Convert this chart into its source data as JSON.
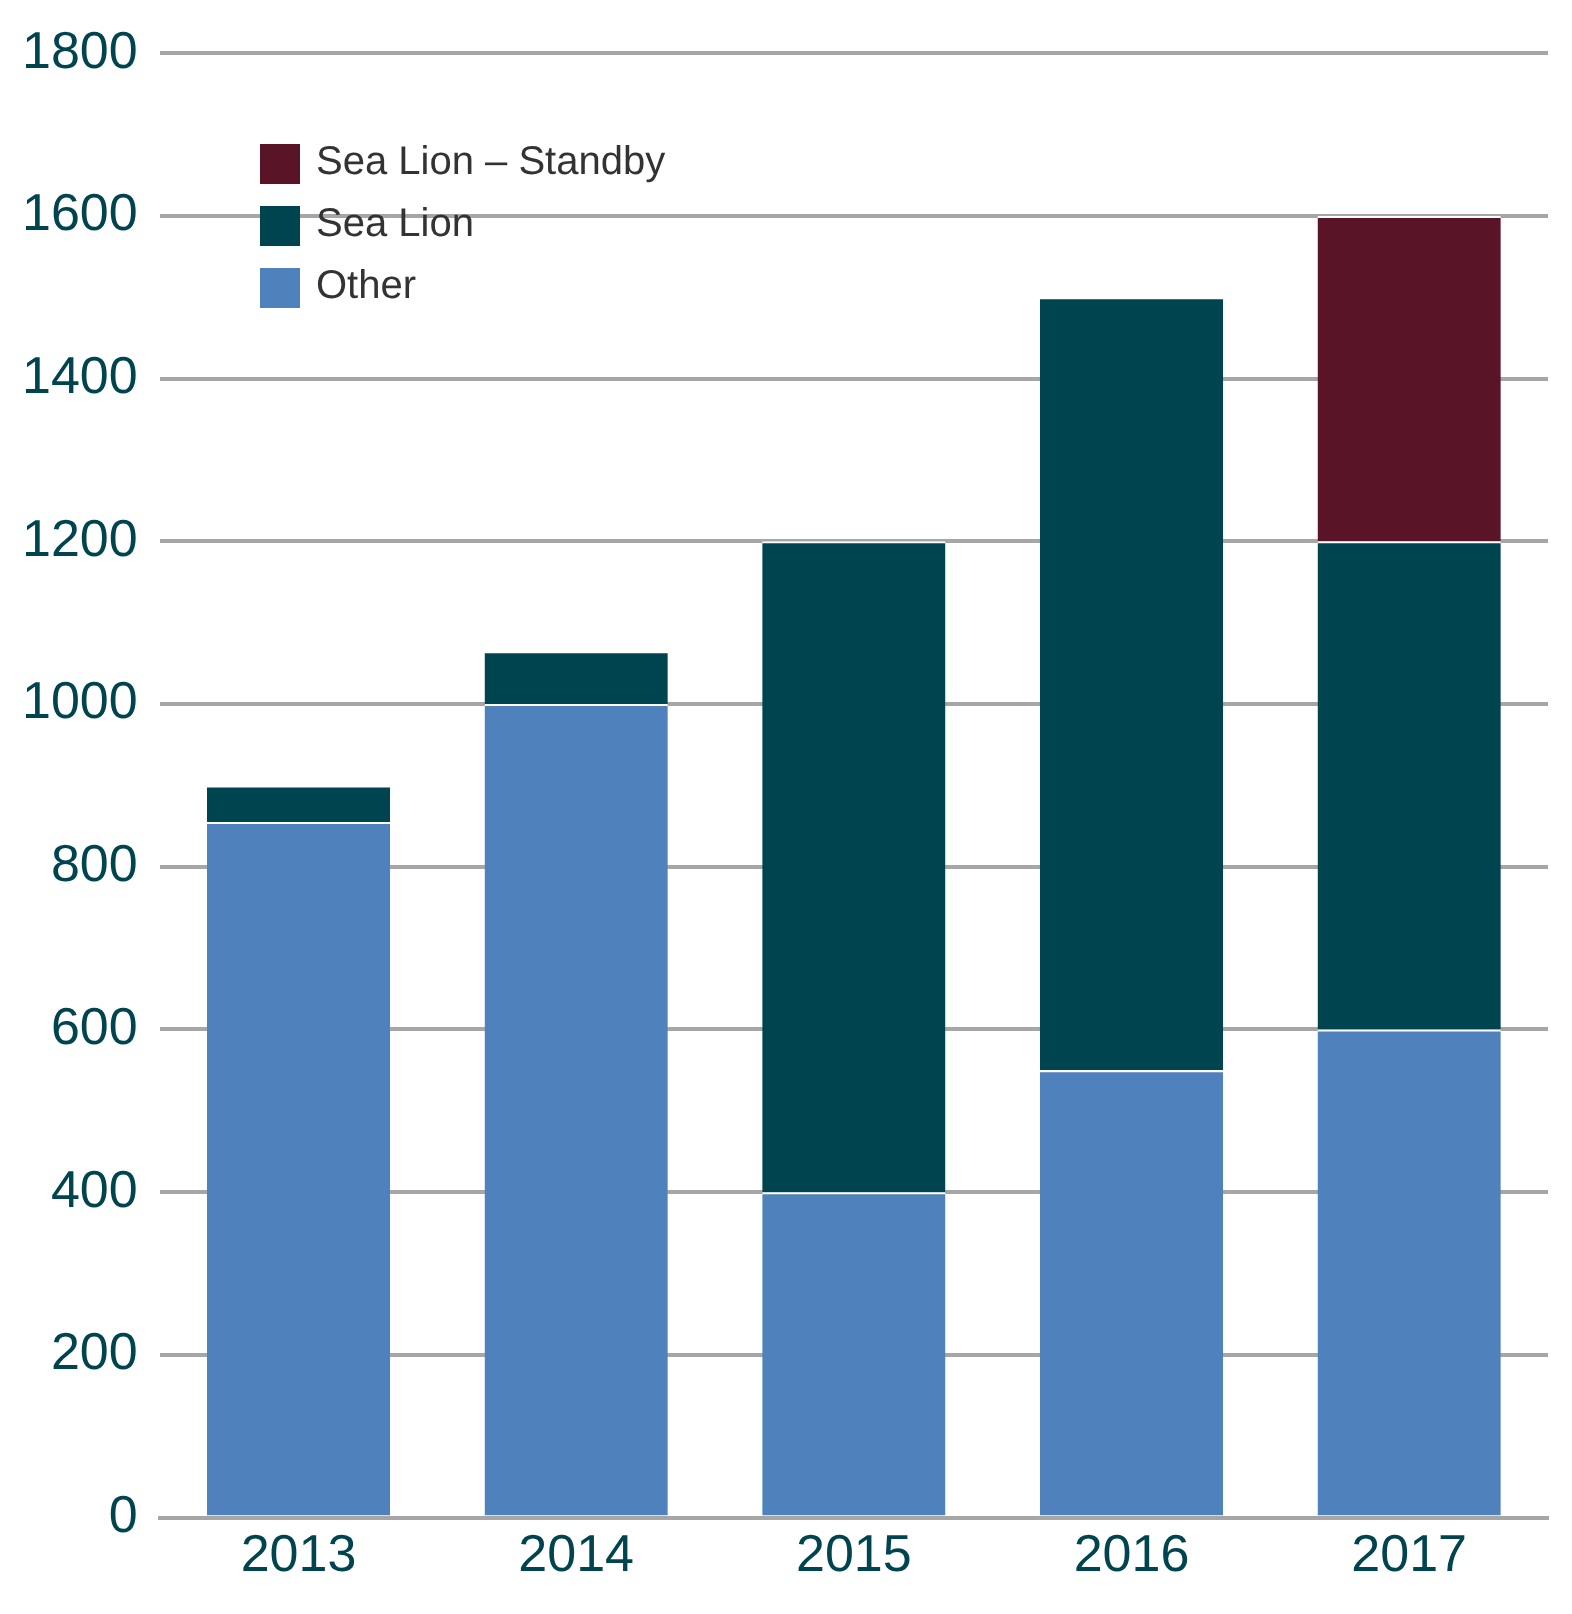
{
  "chart_data": {
    "type": "bar",
    "stacked": true,
    "categories": [
      "2013",
      "2014",
      "2015",
      "2016",
      "2017"
    ],
    "series": [
      {
        "name": "Other",
        "color": "#4f81bd",
        "values": [
          855,
          1000,
          400,
          550,
          600
        ]
      },
      {
        "name": "Sea Lion",
        "color": "#00444f",
        "values": [
          45,
          65,
          800,
          950,
          600
        ]
      },
      {
        "name": "Sea Lion – Standby",
        "color": "#5a1428",
        "values": [
          null,
          null,
          null,
          null,
          400
        ]
      }
    ],
    "ylim": [
      0,
      1800
    ],
    "yticks": [
      0,
      200,
      400,
      600,
      800,
      1000,
      1200,
      1400,
      1600,
      1800
    ],
    "grid": "y",
    "legend": "top left"
  }
}
